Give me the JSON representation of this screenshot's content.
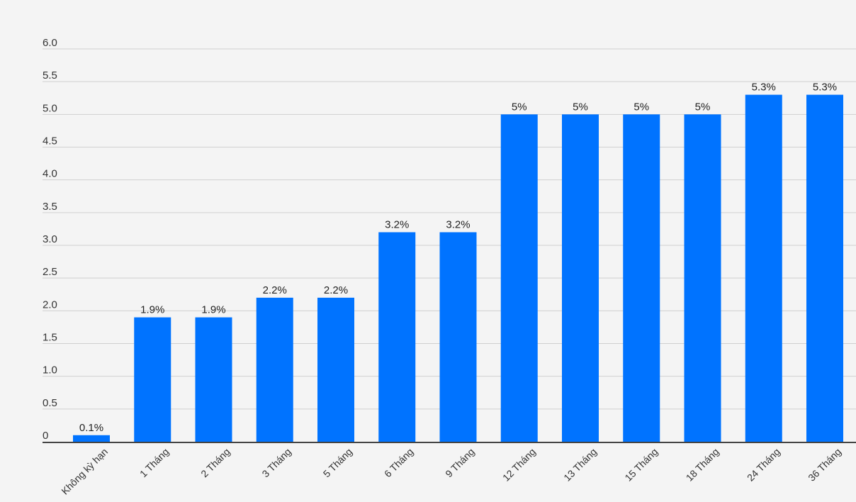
{
  "chart_data": {
    "type": "bar",
    "title": "",
    "xlabel": "",
    "ylabel": "",
    "ylim": [
      0,
      6
    ],
    "yticks": [
      "0",
      "0.5",
      "1.0",
      "1.5",
      "2.0",
      "2.5",
      "3.0",
      "3.5",
      "4.0",
      "4.5",
      "5.0",
      "5.5",
      "6.0"
    ],
    "ytick_values": [
      0,
      0.5,
      1.0,
      1.5,
      2.0,
      2.5,
      3.0,
      3.5,
      4.0,
      4.5,
      5.0,
      5.5,
      6.0
    ],
    "grid": true,
    "legend": "none",
    "bar_color": "#0073ff",
    "categories": [
      "Không kỳ hạn",
      "1 Tháng",
      "2 Tháng",
      "3 Tháng",
      "5 Tháng",
      "6 Tháng",
      "9 Tháng",
      "12 Tháng",
      "13 Tháng",
      "15 Tháng",
      "18 Tháng",
      "24 Tháng",
      "36 Tháng"
    ],
    "values": [
      0.1,
      1.9,
      1.9,
      2.2,
      2.2,
      3.2,
      3.2,
      5,
      5,
      5,
      5,
      5.3,
      5.3
    ],
    "data_labels": [
      "0.1%",
      "1.9%",
      "1.9%",
      "2.2%",
      "2.2%",
      "3.2%",
      "3.2%",
      "5%",
      "5%",
      "5%",
      "5%",
      "5.3%",
      "5.3%"
    ]
  }
}
